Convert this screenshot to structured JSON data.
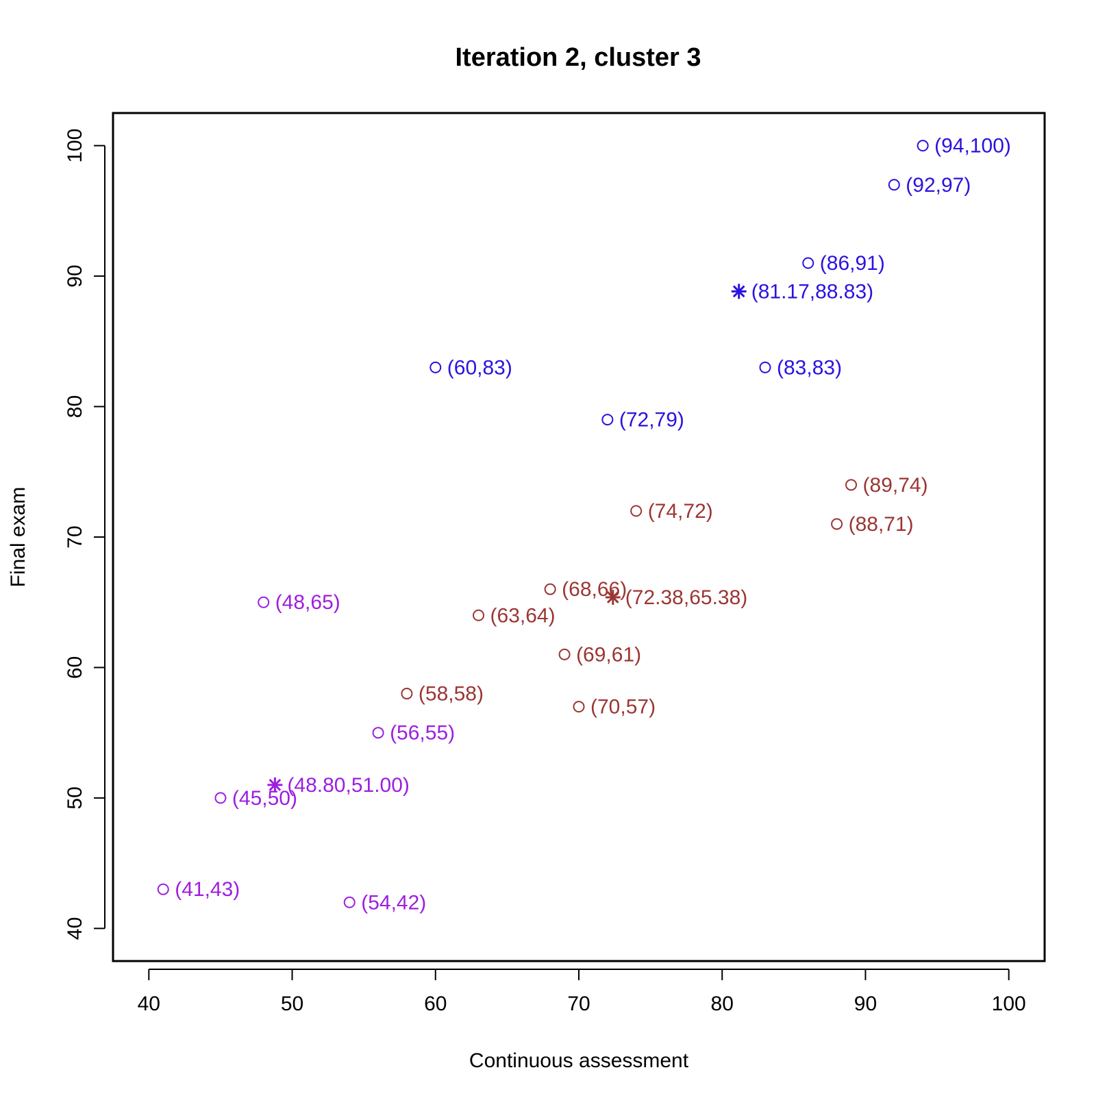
{
  "chart_data": {
    "type": "scatter",
    "title": "Iteration 2, cluster 3",
    "xlabel": "Continuous assessment",
    "ylabel": "Final exam",
    "xlim": [
      37.5,
      102.5
    ],
    "ylim": [
      37.5,
      102.5
    ],
    "x_ticks": [
      40,
      50,
      60,
      70,
      80,
      90,
      100
    ],
    "y_ticks": [
      40,
      50,
      60,
      70,
      80,
      90,
      100
    ],
    "x_tick_labels": [
      "40",
      "50",
      "60",
      "70",
      "80",
      "90",
      "100"
    ],
    "y_tick_labels": [
      "40",
      "50",
      "60",
      "70",
      "80",
      "90",
      "100"
    ],
    "grid": false,
    "series": [
      {
        "color": "#2b12e0",
        "points": [
          {
            "x": 94,
            "y": 100,
            "label": "(94,100)"
          },
          {
            "x": 92,
            "y": 97,
            "label": "(92,97)"
          },
          {
            "x": 86,
            "y": 91,
            "label": "(86,91)"
          },
          {
            "x": 60,
            "y": 83,
            "label": "(60,83)"
          },
          {
            "x": 83,
            "y": 83,
            "label": "(83,83)"
          },
          {
            "x": 72,
            "y": 79,
            "label": "(72,79)"
          }
        ],
        "centroid": {
          "x": 81.17,
          "y": 88.83,
          "label": "(81.17,88.83)"
        }
      },
      {
        "color": "#9b3633",
        "points": [
          {
            "x": 89,
            "y": 74,
            "label": "(89,74)"
          },
          {
            "x": 74,
            "y": 72,
            "label": "(74,72)"
          },
          {
            "x": 88,
            "y": 71,
            "label": "(88,71)"
          },
          {
            "x": 68,
            "y": 66,
            "label": "(68,66)"
          },
          {
            "x": 63,
            "y": 64,
            "label": "(63,64)"
          },
          {
            "x": 69,
            "y": 61,
            "label": "(69,61)"
          },
          {
            "x": 58,
            "y": 58,
            "label": "(58,58)"
          },
          {
            "x": 70,
            "y": 57,
            "label": "(70,57)"
          }
        ],
        "centroid": {
          "x": 72.38,
          "y": 65.38,
          "label": "(72.38,65.38)"
        }
      },
      {
        "color": "#9d1ee0",
        "points": [
          {
            "x": 48,
            "y": 65,
            "label": "(48,65)"
          },
          {
            "x": 56,
            "y": 55,
            "label": "(56,55)"
          },
          {
            "x": 45,
            "y": 50,
            "label": "(45,50)"
          },
          {
            "x": 41,
            "y": 43,
            "label": "(41,43)"
          },
          {
            "x": 54,
            "y": 42,
            "label": "(54,42)"
          }
        ],
        "centroid": {
          "x": 48.8,
          "y": 51.0,
          "label": "(48.80,51.00)"
        }
      }
    ]
  }
}
